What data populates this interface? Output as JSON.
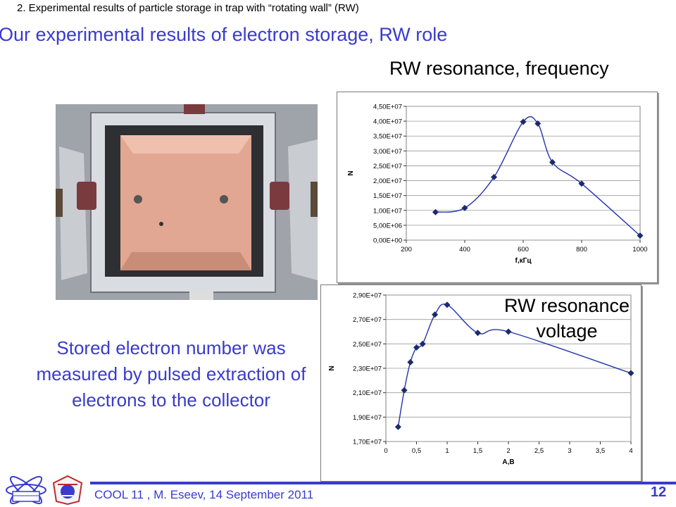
{
  "header": {
    "caption": "2. Experimental results of particle storage in trap with “rotating wall” (RW)",
    "title": "Our experimental results of electron storage, RW role"
  },
  "chart1_heading": "RW resonance, frequency",
  "chart2_heading_line1": "RW resonance",
  "chart2_heading_line2": "voltage",
  "stored_text": "Stored electron number was measured by pulsed extraction of electrons to the collector",
  "footer": {
    "text": "COOL 11 , M. Eseev, 14 September 2011",
    "page_number": "12"
  },
  "colors": {
    "accent": "#3a3acf",
    "series": "#2233aa",
    "marker": "#1c2a6e"
  },
  "chart_data": [
    {
      "type": "line",
      "xlabel": "f,кГц",
      "ylabel": "N",
      "xlim": [
        200,
        1000
      ],
      "ylim": [
        0,
        45000000
      ],
      "xticks": [
        "200",
        "400",
        "600",
        "800",
        "1000"
      ],
      "yticks": [
        "0,00E+00",
        "5,00E+06",
        "1,00E+07",
        "1,50E+07",
        "2,00E+07",
        "2,50E+07",
        "3,00E+07",
        "3,50E+07",
        "4,00E+07",
        "4,50E+07"
      ],
      "grid": true,
      "series": [
        {
          "x": [
            300,
            400,
            500,
            600,
            650,
            700,
            800,
            1000
          ],
          "y": [
            9400000,
            10800000,
            21200000,
            39800000,
            39200000,
            26200000,
            19000000,
            1500000
          ]
        }
      ]
    },
    {
      "type": "line",
      "xlabel": "A,B",
      "ylabel": "N",
      "xlim": [
        0,
        4
      ],
      "ylim": [
        17000000,
        29000000
      ],
      "xticks": [
        "0",
        "0,5",
        "1",
        "1,5",
        "2",
        "2,5",
        "3",
        "3,5",
        "4"
      ],
      "yticks": [
        "1,70E+07",
        "1,90E+07",
        "2,10E+07",
        "2,30E+07",
        "2,50E+07",
        "2,70E+07",
        "2,90E+07"
      ],
      "grid": true,
      "series": [
        {
          "x": [
            0.2,
            0.3,
            0.4,
            0.5,
            0.6,
            0.8,
            1.0,
            1.5,
            2.0,
            4.0
          ],
          "y": [
            18200000,
            21200000,
            23500000,
            24700000,
            25000000,
            27400000,
            28200000,
            25900000,
            26000000,
            22600000
          ]
        }
      ]
    }
  ]
}
